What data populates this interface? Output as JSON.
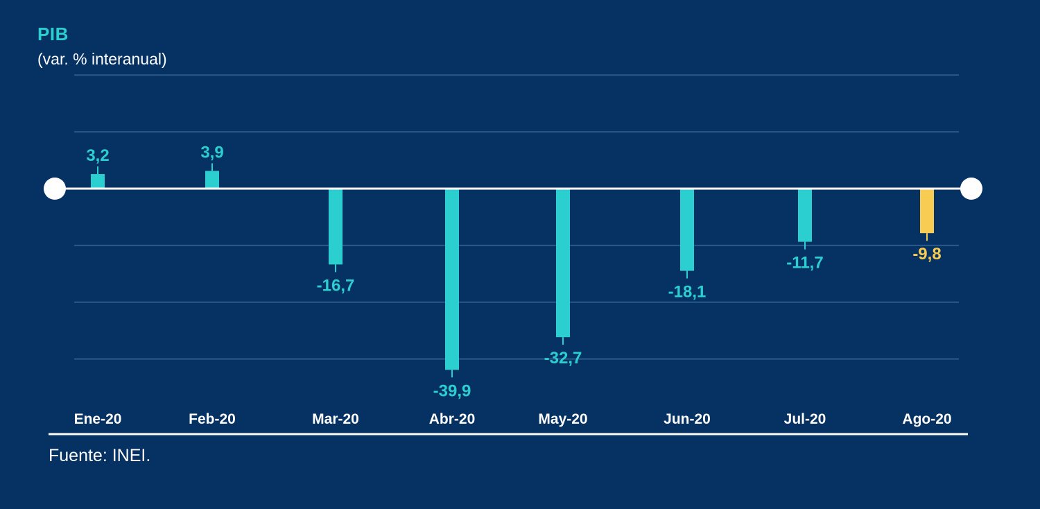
{
  "chart_data": {
    "type": "bar",
    "title": "PIB",
    "subtitle": "(var. % interanual)",
    "categories": [
      "Ene-20",
      "Feb-20",
      "Mar-20",
      "Abr-20",
      "May-20",
      "Jun-20",
      "Jul-20",
      "Ago-20"
    ],
    "values": [
      3.2,
      3.9,
      -16.7,
      -39.9,
      -32.7,
      -18.1,
      -11.7,
      -9.8
    ],
    "value_labels": [
      "3,2",
      "3,9",
      "-16,7",
      "-39,9",
      "-32,7",
      "-18,1",
      "-11,7",
      "-9,8"
    ],
    "highlight_index": 7,
    "xlabel": "",
    "ylabel": "",
    "grid": true,
    "legend": "none"
  },
  "colors": {
    "background": "#053163",
    "bar": "#2ccfcf",
    "highlight": "#f8cb52",
    "axis": "#ffffff",
    "grid": "#2a5a8a",
    "title": "#2ccfcf"
  },
  "source": "Fuente: INEI."
}
